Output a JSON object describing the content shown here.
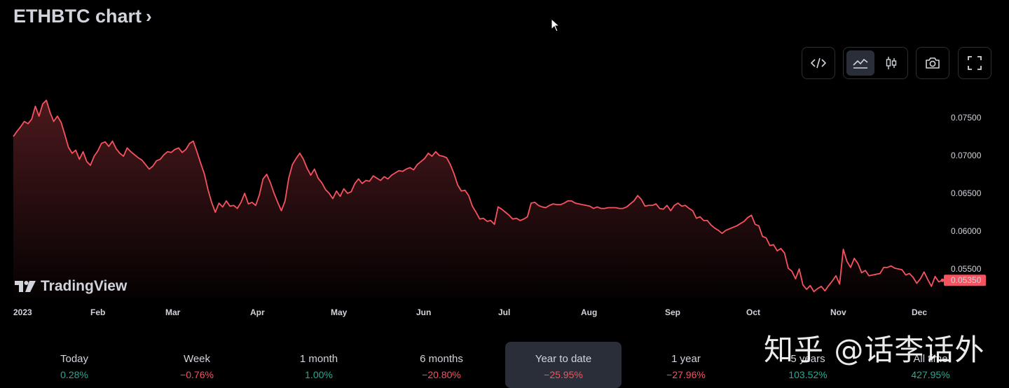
{
  "header": {
    "title": "ETHBTC chart",
    "chevron": "›"
  },
  "toolbar": {
    "embed_icon": "code-icon",
    "area_icon": "area-chart-icon",
    "candles_icon": "candlestick-icon",
    "snapshot_icon": "camera-icon",
    "fullscreen_icon": "fullscreen-icon"
  },
  "brand": {
    "name": "TradingView"
  },
  "watermark": {
    "text": "知乎 @话李话外"
  },
  "colors": {
    "line": "#f7525f",
    "positive": "#22ab94",
    "negative": "#f7525f",
    "background": "#000000"
  },
  "chart_data": {
    "type": "area",
    "title": "ETHBTC chart",
    "x_labels": [
      "2023",
      "Feb",
      "Mar",
      "Apr",
      "May",
      "Jun",
      "Jul",
      "Aug",
      "Sep",
      "Oct",
      "Nov",
      "Dec"
    ],
    "y_ticks": [
      "0.07500",
      "0.07000",
      "0.06500",
      "0.06000",
      "0.05500"
    ],
    "ylim": [
      0.0515,
      0.0775
    ],
    "last_price": "0.05350",
    "grid": false,
    "series": [
      {
        "values": [
          0.0725,
          0.0732,
          0.0738,
          0.0745,
          0.0742,
          0.0748,
          0.0765,
          0.0752,
          0.0768,
          0.0773,
          0.0757,
          0.0745,
          0.0752,
          0.0744,
          0.0728,
          0.0711,
          0.0703,
          0.0707,
          0.0695,
          0.0705,
          0.0692,
          0.0687,
          0.0699,
          0.0706,
          0.0716,
          0.0718,
          0.0712,
          0.0719,
          0.0709,
          0.0703,
          0.0699,
          0.071,
          0.0705,
          0.0701,
          0.0697,
          0.0694,
          0.0688,
          0.0682,
          0.0686,
          0.0693,
          0.0695,
          0.0701,
          0.0705,
          0.0704,
          0.0708,
          0.071,
          0.0704,
          0.0708,
          0.0716,
          0.0719,
          0.0705,
          0.069,
          0.0676,
          0.0655,
          0.0638,
          0.0625,
          0.0637,
          0.0632,
          0.064,
          0.0633,
          0.0634,
          0.063,
          0.0638,
          0.065,
          0.0636,
          0.0638,
          0.0634,
          0.0648,
          0.0669,
          0.0675,
          0.0664,
          0.065,
          0.0638,
          0.0627,
          0.064,
          0.067,
          0.0688,
          0.0696,
          0.0703,
          0.0695,
          0.0683,
          0.0674,
          0.0682,
          0.067,
          0.0664,
          0.0655,
          0.065,
          0.0643,
          0.0653,
          0.0646,
          0.0656,
          0.065,
          0.0652,
          0.0663,
          0.0669,
          0.0663,
          0.0667,
          0.0666,
          0.0673,
          0.067,
          0.0667,
          0.0672,
          0.0669,
          0.0674,
          0.0677,
          0.068,
          0.0679,
          0.0682,
          0.0684,
          0.0681,
          0.0688,
          0.0692,
          0.0696,
          0.0703,
          0.0699,
          0.0705,
          0.07,
          0.0699,
          0.0697,
          0.0688,
          0.0676,
          0.0661,
          0.0653,
          0.0654,
          0.0647,
          0.0633,
          0.0625,
          0.0616,
          0.0617,
          0.0613,
          0.0614,
          0.0609,
          0.0632,
          0.0629,
          0.0625,
          0.0621,
          0.0616,
          0.0617,
          0.0614,
          0.0616,
          0.0619,
          0.0637,
          0.0638,
          0.0634,
          0.0632,
          0.0631,
          0.0634,
          0.0636,
          0.0635,
          0.0635,
          0.0637,
          0.064,
          0.064,
          0.0637,
          0.0636,
          0.0635,
          0.0634,
          0.0633,
          0.063,
          0.0632,
          0.063,
          0.063,
          0.0631,
          0.0631,
          0.0631,
          0.063,
          0.063,
          0.0632,
          0.0636,
          0.064,
          0.0647,
          0.0642,
          0.0633,
          0.0634,
          0.0634,
          0.0636,
          0.063,
          0.0629,
          0.0634,
          0.0627,
          0.0634,
          0.0637,
          0.0633,
          0.0634,
          0.063,
          0.0627,
          0.0617,
          0.0619,
          0.0614,
          0.0614,
          0.0608,
          0.0604,
          0.0601,
          0.0597,
          0.0601,
          0.0603,
          0.0605,
          0.0607,
          0.061,
          0.0613,
          0.0618,
          0.0621,
          0.0609,
          0.0607,
          0.0593,
          0.0591,
          0.0581,
          0.0582,
          0.0574,
          0.0577,
          0.0571,
          0.0551,
          0.0547,
          0.0537,
          0.055,
          0.0529,
          0.0523,
          0.0528,
          0.052,
          0.0524,
          0.0527,
          0.0521,
          0.0528,
          0.0534,
          0.0541,
          0.053,
          0.0576,
          0.056,
          0.0552,
          0.0564,
          0.0557,
          0.0545,
          0.0548,
          0.0541,
          0.0542,
          0.0543,
          0.0544,
          0.0552,
          0.0552,
          0.0554,
          0.0551,
          0.055,
          0.0549,
          0.0542,
          0.0544,
          0.0539,
          0.0531,
          0.0537,
          0.0546,
          0.0536,
          0.0527,
          0.054,
          0.0533,
          0.0535
        ]
      }
    ]
  },
  "periods": [
    {
      "label": "Today",
      "value": "0.28%",
      "sign": "pos",
      "active": false
    },
    {
      "label": "Week",
      "value": "−0.76%",
      "sign": "neg",
      "active": false
    },
    {
      "label": "1 month",
      "value": "1.00%",
      "sign": "pos",
      "active": false
    },
    {
      "label": "6 months",
      "value": "−20.80%",
      "sign": "neg",
      "active": false
    },
    {
      "label": "Year to date",
      "value": "−25.95%",
      "sign": "neg",
      "active": true
    },
    {
      "label": "1 year",
      "value": "−27.96%",
      "sign": "neg",
      "active": false
    },
    {
      "label": "5 years",
      "value": "103.52%",
      "sign": "pos",
      "active": false
    },
    {
      "label": "All time",
      "value": "427.95%",
      "sign": "pos",
      "active": false
    }
  ]
}
